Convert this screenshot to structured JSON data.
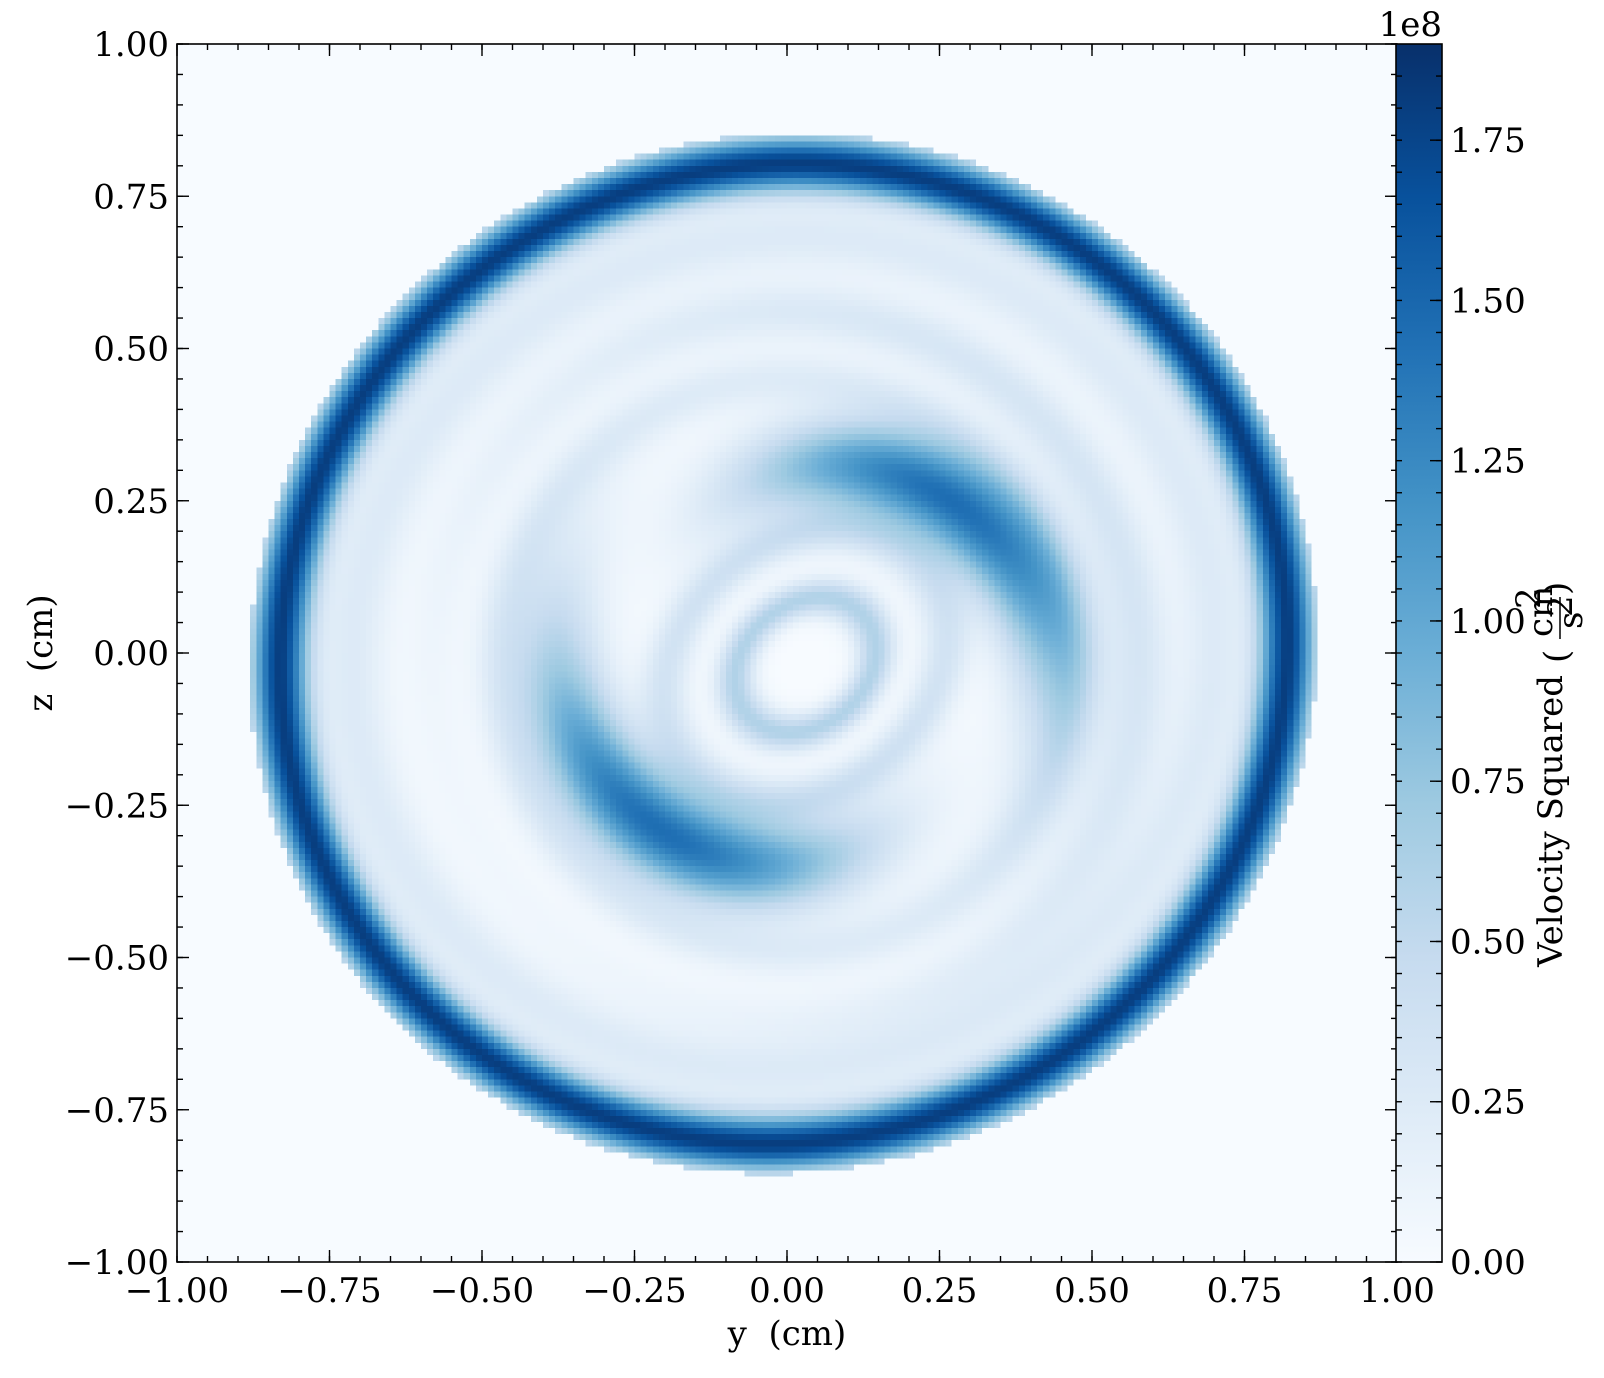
{
  "chart_data": {
    "type": "heatmap",
    "title": "",
    "xlabel": "y  (cm)",
    "ylabel": "z  (cm)",
    "xlim": [
      -1.0,
      1.0
    ],
    "ylim": [
      -1.0,
      1.0
    ],
    "x_tick_labels": [
      "−1.00",
      "−0.75",
      "−0.50",
      "−0.25",
      "0.00",
      "0.25",
      "0.50",
      "0.75",
      "1.00"
    ],
    "y_tick_labels": [
      "−1.00",
      "−0.75",
      "−0.50",
      "−0.25",
      "0.00",
      "0.25",
      "0.50",
      "0.75",
      "1.00"
    ],
    "x_ticks": [
      -1.0,
      -0.75,
      -0.5,
      -0.25,
      0.0,
      0.25,
      0.5,
      0.75,
      1.0
    ],
    "y_ticks": [
      -1.0,
      -0.75,
      -0.5,
      -0.25,
      0.0,
      0.25,
      0.5,
      0.75,
      1.0
    ],
    "colormap": "Blues",
    "colormap_low": "#f7fbff",
    "colormap_high": "#08306b",
    "colorbar": {
      "label": "Velocity Squared",
      "unit_numerator": "cm",
      "unit_numerator_exp": "2",
      "unit_denominator": "s",
      "unit_denominator_exp": "2",
      "offset_text": "1e8",
      "range": [
        0.0,
        1.9
      ],
      "ticks": [
        0.0,
        0.25,
        0.5,
        0.75,
        1.0,
        1.25,
        1.5,
        1.75
      ],
      "tick_labels": [
        "0.00",
        "0.25",
        "0.50",
        "0.75",
        "1.00",
        "1.25",
        "1.50",
        "1.75"
      ]
    },
    "features": {
      "outer_shell": {
        "center": [
          0.0,
          -0.02
        ],
        "radius_y": 0.85,
        "radius_z": 0.86,
        "peak": 1.8
      },
      "spiral_arm_upper": {
        "center": [
          0.23,
          0.3
        ],
        "peak": 1.45
      },
      "spiral_arm_lower": {
        "center": [
          -0.23,
          -0.28
        ],
        "peak": 1.45
      },
      "inner_rings": {
        "center": [
          0.03,
          -0.02
        ],
        "peak": 0.6
      }
    }
  }
}
